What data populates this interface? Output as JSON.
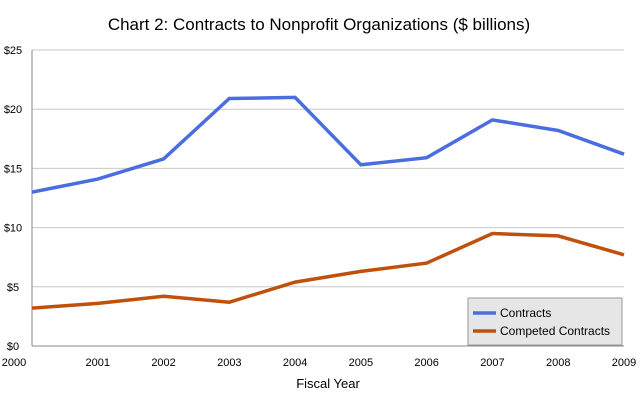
{
  "chart_data": {
    "type": "line",
    "title": "Chart 2: Contracts to Nonprofit Organizations ($ billions)",
    "xlabel": "Fiscal Year",
    "ylabel": "",
    "x": [
      "2000",
      "2001",
      "2002",
      "2003",
      "2004",
      "2005",
      "2006",
      "2007",
      "2008",
      "2009"
    ],
    "y_ticks": [
      "$0",
      "$5",
      "$10",
      "$15",
      "$20",
      "$25"
    ],
    "ylim": [
      0,
      25
    ],
    "grid": "horizontal",
    "legend_position": "bottom-right",
    "series": [
      {
        "name": "Contracts",
        "color": "#4a6ee0",
        "values": [
          13.0,
          14.1,
          15.8,
          20.9,
          21.0,
          15.3,
          15.9,
          19.1,
          18.2,
          16.2
        ]
      },
      {
        "name": "Competed Contracts",
        "color": "#c0510d",
        "values": [
          3.2,
          3.6,
          4.2,
          3.7,
          5.4,
          6.3,
          7.0,
          9.5,
          9.3,
          7.7
        ]
      }
    ]
  }
}
